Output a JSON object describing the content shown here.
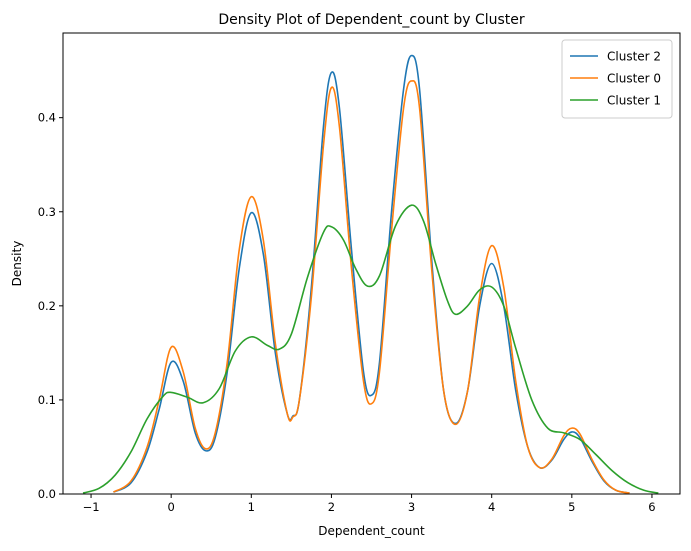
{
  "chart_data": {
    "type": "line",
    "title": "Density Plot of Dependent_count by Cluster",
    "xlabel": "Dependent_count",
    "ylabel": "Density",
    "xlim": [
      -1.35,
      6.35
    ],
    "ylim": [
      0,
      0.49
    ],
    "xticks": [
      -1,
      0,
      1,
      2,
      3,
      4,
      5,
      6
    ],
    "yticks": [
      0.0,
      0.1,
      0.2,
      0.3,
      0.4
    ],
    "xtick_labels": [
      "−1",
      "0",
      "1",
      "2",
      "3",
      "4",
      "5",
      "6"
    ],
    "ytick_labels": [
      "0.0",
      "0.1",
      "0.2",
      "0.3",
      "0.4"
    ],
    "grid": false,
    "legend_position": "upper right",
    "series": [
      {
        "name": "Cluster 2",
        "color": "#1f77b4",
        "points": [
          [
            -0.72,
            0.002
          ],
          [
            -0.5,
            0.012
          ],
          [
            -0.3,
            0.045
          ],
          [
            -0.15,
            0.09
          ],
          [
            0,
            0.14
          ],
          [
            0.15,
            0.12
          ],
          [
            0.3,
            0.065
          ],
          [
            0.43,
            0.046
          ],
          [
            0.55,
            0.06
          ],
          [
            0.7,
            0.13
          ],
          [
            0.85,
            0.24
          ],
          [
            1,
            0.299
          ],
          [
            1.15,
            0.255
          ],
          [
            1.3,
            0.15
          ],
          [
            1.45,
            0.085
          ],
          [
            1.52,
            0.083
          ],
          [
            1.6,
            0.1
          ],
          [
            1.75,
            0.22
          ],
          [
            1.9,
            0.39
          ],
          [
            2,
            0.448
          ],
          [
            2.1,
            0.41
          ],
          [
            2.25,
            0.26
          ],
          [
            2.4,
            0.13
          ],
          [
            2.5,
            0.105
          ],
          [
            2.6,
            0.14
          ],
          [
            2.75,
            0.3
          ],
          [
            2.9,
            0.43
          ],
          [
            3,
            0.466
          ],
          [
            3.1,
            0.43
          ],
          [
            3.25,
            0.25
          ],
          [
            3.4,
            0.11
          ],
          [
            3.55,
            0.075
          ],
          [
            3.7,
            0.11
          ],
          [
            3.85,
            0.2
          ],
          [
            4,
            0.245
          ],
          [
            4.15,
            0.2
          ],
          [
            4.3,
            0.11
          ],
          [
            4.45,
            0.05
          ],
          [
            4.6,
            0.028
          ],
          [
            4.75,
            0.036
          ],
          [
            4.9,
            0.058
          ],
          [
            5,
            0.066
          ],
          [
            5.1,
            0.06
          ],
          [
            5.25,
            0.035
          ],
          [
            5.4,
            0.014
          ],
          [
            5.55,
            0.004
          ],
          [
            5.72,
            0.001
          ]
        ]
      },
      {
        "name": "Cluster 0",
        "color": "#ff7f0e",
        "points": [
          [
            -0.72,
            0.002
          ],
          [
            -0.5,
            0.014
          ],
          [
            -0.3,
            0.05
          ],
          [
            -0.15,
            0.1
          ],
          [
            0,
            0.156
          ],
          [
            0.15,
            0.13
          ],
          [
            0.3,
            0.07
          ],
          [
            0.43,
            0.048
          ],
          [
            0.55,
            0.065
          ],
          [
            0.7,
            0.14
          ],
          [
            0.85,
            0.26
          ],
          [
            1,
            0.316
          ],
          [
            1.15,
            0.27
          ],
          [
            1.3,
            0.16
          ],
          [
            1.45,
            0.085
          ],
          [
            1.52,
            0.082
          ],
          [
            1.6,
            0.1
          ],
          [
            1.75,
            0.21
          ],
          [
            1.9,
            0.37
          ],
          [
            2,
            0.432
          ],
          [
            2.1,
            0.39
          ],
          [
            2.25,
            0.24
          ],
          [
            2.4,
            0.12
          ],
          [
            2.5,
            0.096
          ],
          [
            2.6,
            0.13
          ],
          [
            2.75,
            0.28
          ],
          [
            2.9,
            0.41
          ],
          [
            3,
            0.439
          ],
          [
            3.1,
            0.41
          ],
          [
            3.25,
            0.24
          ],
          [
            3.4,
            0.11
          ],
          [
            3.55,
            0.074
          ],
          [
            3.7,
            0.11
          ],
          [
            3.85,
            0.21
          ],
          [
            4,
            0.264
          ],
          [
            4.15,
            0.22
          ],
          [
            4.3,
            0.12
          ],
          [
            4.45,
            0.05
          ],
          [
            4.6,
            0.028
          ],
          [
            4.75,
            0.037
          ],
          [
            4.9,
            0.062
          ],
          [
            5,
            0.07
          ],
          [
            5.1,
            0.064
          ],
          [
            5.25,
            0.037
          ],
          [
            5.4,
            0.015
          ],
          [
            5.55,
            0.004
          ],
          [
            5.72,
            0.001
          ]
        ]
      },
      {
        "name": "Cluster 1",
        "color": "#2ca02c",
        "points": [
          [
            -1.1,
            0.001
          ],
          [
            -0.9,
            0.006
          ],
          [
            -0.7,
            0.02
          ],
          [
            -0.5,
            0.045
          ],
          [
            -0.3,
            0.08
          ],
          [
            -0.1,
            0.104
          ],
          [
            0,
            0.108
          ],
          [
            0.2,
            0.103
          ],
          [
            0.4,
            0.097
          ],
          [
            0.6,
            0.112
          ],
          [
            0.8,
            0.152
          ],
          [
            1,
            0.167
          ],
          [
            1.2,
            0.158
          ],
          [
            1.35,
            0.154
          ],
          [
            1.5,
            0.17
          ],
          [
            1.7,
            0.23
          ],
          [
            1.9,
            0.278
          ],
          [
            2,
            0.284
          ],
          [
            2.15,
            0.27
          ],
          [
            2.3,
            0.24
          ],
          [
            2.45,
            0.221
          ],
          [
            2.6,
            0.232
          ],
          [
            2.8,
            0.285
          ],
          [
            3,
            0.307
          ],
          [
            3.15,
            0.29
          ],
          [
            3.3,
            0.245
          ],
          [
            3.45,
            0.205
          ],
          [
            3.55,
            0.191
          ],
          [
            3.7,
            0.2
          ],
          [
            3.85,
            0.217
          ],
          [
            4,
            0.22
          ],
          [
            4.15,
            0.2
          ],
          [
            4.3,
            0.155
          ],
          [
            4.5,
            0.1
          ],
          [
            4.7,
            0.07
          ],
          [
            4.9,
            0.065
          ],
          [
            5.1,
            0.058
          ],
          [
            5.3,
            0.042
          ],
          [
            5.5,
            0.025
          ],
          [
            5.7,
            0.012
          ],
          [
            5.9,
            0.004
          ],
          [
            6.08,
            0.001
          ]
        ]
      }
    ]
  }
}
